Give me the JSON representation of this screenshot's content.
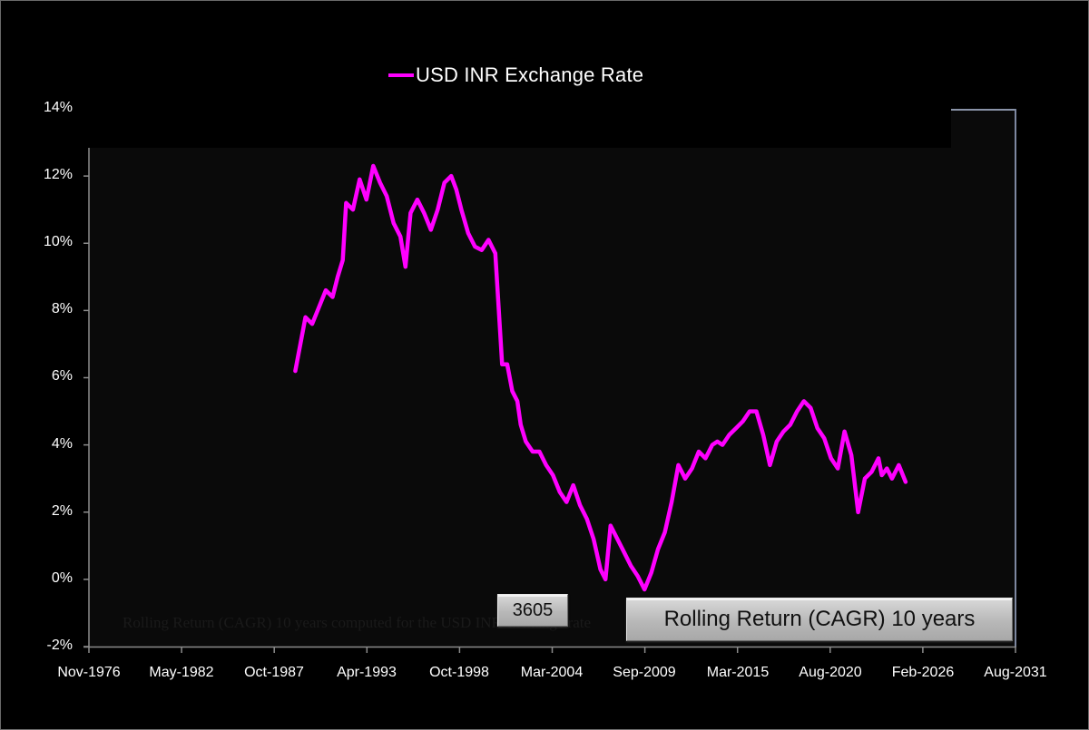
{
  "chart_data": {
    "type": "line",
    "title": "",
    "legend": {
      "position": "top",
      "entries": [
        {
          "name": "USD INR Exchange Rate",
          "color": "#ff00ff"
        }
      ]
    },
    "xlabel": "",
    "ylabel": "",
    "x_tick_labels": [
      "Nov-1976",
      "May-1982",
      "Oct-1987",
      "Apr-1993",
      "Oct-1998",
      "Mar-2004",
      "Sep-2009",
      "Mar-2015",
      "Aug-2020",
      "Feb-2026",
      "Aug-2031"
    ],
    "y_tick_labels": [
      "14%",
      "12%",
      "10%",
      "8%",
      "6%",
      "4%",
      "2%",
      "0%",
      "-2%"
    ],
    "ylim": [
      -2,
      14
    ],
    "grid": false,
    "series": [
      {
        "name": "USD INR Exchange Rate",
        "color": "#ff00ff",
        "x": [
          1989.0,
          1989.3,
          1989.6,
          1990.0,
          1990.4,
          1990.8,
          1991.2,
          1991.5,
          1991.8,
          1992.0,
          1992.4,
          1992.8,
          1993.2,
          1993.6,
          1994.0,
          1994.4,
          1994.8,
          1995.2,
          1995.5,
          1995.8,
          1996.2,
          1996.6,
          1997.0,
          1997.4,
          1997.8,
          1998.2,
          1998.5,
          1998.8,
          1999.2,
          1999.6,
          2000.0,
          2000.4,
          2000.8,
          2001.2,
          2001.5,
          2001.8,
          2002.1,
          2002.3,
          2002.6,
          2003.0,
          2003.4,
          2003.8,
          2004.2,
          2004.6,
          2005.0,
          2005.4,
          2005.8,
          2006.2,
          2006.6,
          2007.0,
          2007.3,
          2007.6,
          2008.0,
          2008.4,
          2008.8,
          2009.2,
          2009.6,
          2010.0,
          2010.4,
          2010.8,
          2011.2,
          2011.6,
          2012.0,
          2012.4,
          2012.8,
          2013.2,
          2013.6,
          2013.9,
          2014.2,
          2014.6,
          2015.0,
          2015.4,
          2015.8,
          2016.2,
          2016.6,
          2017.0,
          2017.4,
          2017.8,
          2018.2,
          2018.6,
          2019.0,
          2019.4,
          2019.8,
          2020.2,
          2020.6,
          2021.0,
          2021.4,
          2021.8,
          2022.2,
          2022.6,
          2023.0,
          2023.4,
          2023.6,
          2023.9,
          2024.2,
          2024.6,
          2025.0
        ],
        "values": [
          6.2,
          7.0,
          7.8,
          7.6,
          8.1,
          8.6,
          8.4,
          9.0,
          9.5,
          11.2,
          11.0,
          11.9,
          11.3,
          12.3,
          11.8,
          11.4,
          10.6,
          10.2,
          9.3,
          10.9,
          11.3,
          10.9,
          10.4,
          11.0,
          11.8,
          12.0,
          11.6,
          11.0,
          10.3,
          9.9,
          9.8,
          10.1,
          9.7,
          6.4,
          6.4,
          5.6,
          5.3,
          4.6,
          4.1,
          3.8,
          3.8,
          3.4,
          3.1,
          2.6,
          2.3,
          2.8,
          2.2,
          1.8,
          1.2,
          0.3,
          0.0,
          1.6,
          1.2,
          0.8,
          0.4,
          0.1,
          -0.3,
          0.2,
          0.9,
          1.4,
          2.3,
          3.4,
          3.0,
          3.3,
          3.8,
          3.6,
          4.0,
          4.1,
          4.0,
          4.3,
          4.5,
          4.7,
          5.0,
          5.0,
          4.3,
          3.4,
          4.1,
          4.4,
          4.6,
          5.0,
          5.3,
          5.1,
          4.5,
          4.2,
          3.6,
          3.3,
          4.4,
          3.7,
          2.0,
          3.0,
          3.2,
          3.6,
          3.1,
          3.3,
          3.0,
          3.4,
          2.9
        ]
      }
    ]
  },
  "chart": {
    "legend_label": "USD INR Exchange Rate",
    "counter_button": "3605",
    "title_button": "Rolling Return (CAGR) 10 years",
    "watermark": "Rolling Return (CAGR) 10 years computed for the USD INR exchange rate"
  }
}
